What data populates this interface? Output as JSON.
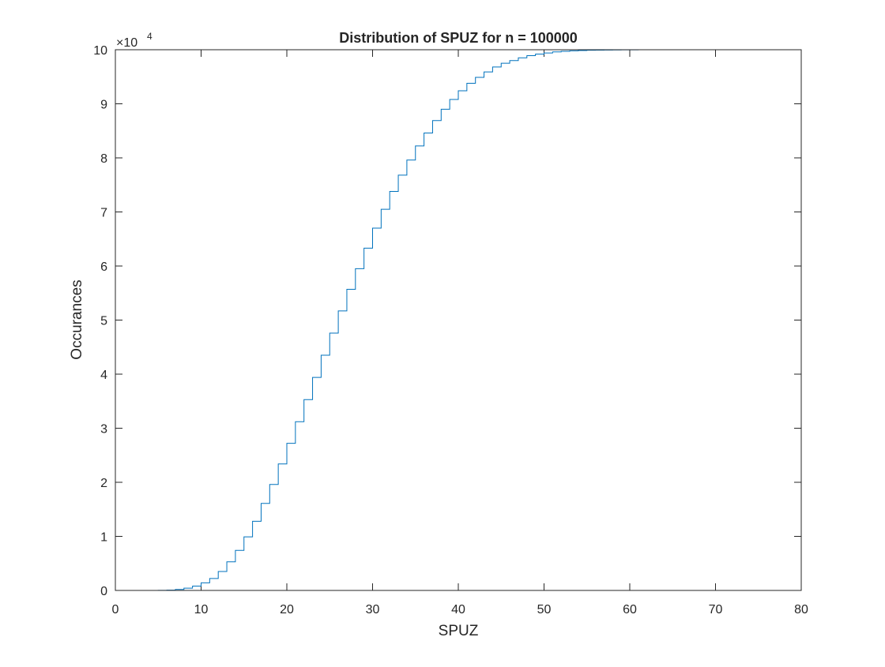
{
  "chart_data": {
    "type": "line",
    "style": "stairs",
    "title": "Distribution of SPUZ for n = 100000",
    "xlabel": "SPUZ",
    "ylabel": "Occurances",
    "xlim": [
      0,
      80
    ],
    "ylim": [
      0,
      100000
    ],
    "x_ticks": [
      "0",
      "10",
      "20",
      "30",
      "40",
      "50",
      "60",
      "70",
      "80"
    ],
    "y_ticks": [
      "0",
      "1",
      "2",
      "3",
      "4",
      "5",
      "6",
      "7",
      "8",
      "9",
      "10"
    ],
    "y_multiplier": {
      "base": "×10",
      "exponent": "4"
    },
    "grid": false,
    "legend": "none",
    "line_color": "#0072BD",
    "x": [
      4,
      5,
      6,
      7,
      8,
      9,
      10,
      11,
      12,
      13,
      14,
      15,
      16,
      17,
      18,
      19,
      20,
      21,
      22,
      23,
      24,
      25,
      26,
      27,
      28,
      29,
      30,
      31,
      32,
      33,
      34,
      35,
      36,
      37,
      38,
      39,
      40,
      41,
      42,
      43,
      44,
      45,
      46,
      47,
      48,
      49,
      50,
      51,
      52,
      53,
      54,
      55,
      56,
      57,
      58,
      59,
      60,
      61,
      62,
      63,
      64,
      65,
      66,
      67,
      68,
      69,
      70,
      71
    ],
    "y": [
      5,
      15,
      60,
      180,
      420,
      800,
      1400,
      2200,
      3500,
      5300,
      7400,
      9900,
      12800,
      16100,
      19600,
      23400,
      27200,
      31200,
      35300,
      39400,
      43500,
      47600,
      51700,
      55700,
      59500,
      63300,
      67000,
      70500,
      73800,
      76800,
      79600,
      82200,
      84600,
      86900,
      89000,
      90800,
      92400,
      93800,
      94900,
      95900,
      96800,
      97500,
      98000,
      98500,
      98900,
      99200,
      99400,
      99600,
      99700,
      99800,
      99850,
      99900,
      99930,
      99950,
      99970,
      99980,
      99990,
      99993,
      99995,
      99996,
      99997,
      99998,
      99999,
      99999,
      100000,
      100000,
      100000,
      100000
    ]
  }
}
